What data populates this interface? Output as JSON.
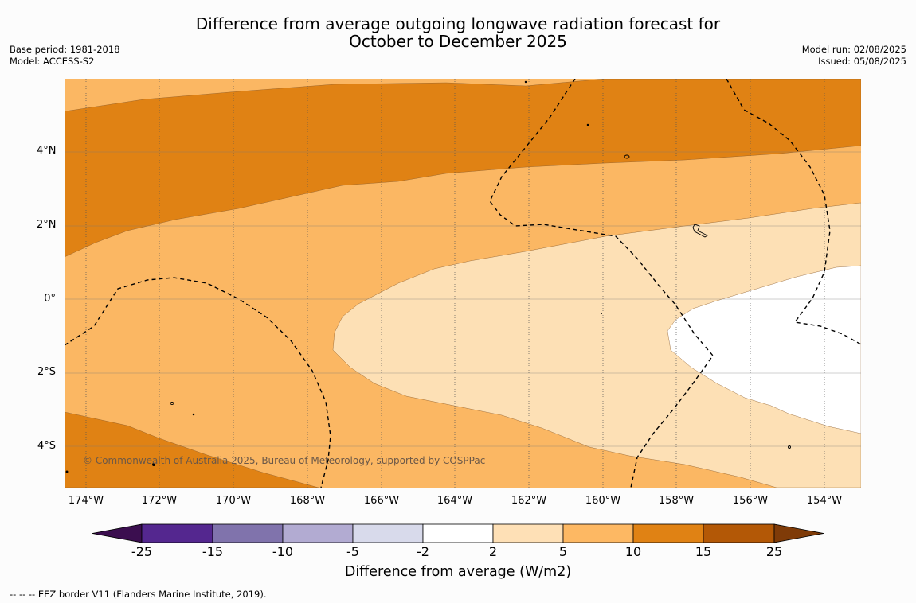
{
  "title": {
    "line1": "Difference from average outgoing longwave radiation forecast for",
    "line2": "October to December 2025"
  },
  "meta_left": {
    "base_period": "Base period: 1981-2018",
    "model": "Model: ACCESS-S2"
  },
  "meta_right": {
    "model_run": "Model run: 02/08/2025",
    "issued": "Issued: 05/08/2025"
  },
  "lat_labels": [
    "4°N",
    "2°N",
    "0°",
    "2°S",
    "4°S"
  ],
  "lon_labels": [
    "174°W",
    "172°W",
    "170°W",
    "168°W",
    "166°W",
    "164°W",
    "162°W",
    "160°W",
    "158°W",
    "156°W",
    "154°W"
  ],
  "copyright": "© Commonwealth of Australia 2025, Bureau of Meteorology, supported by COSPPac",
  "colorbar": {
    "ticks": [
      "-25",
      "-15",
      "-10",
      "-5",
      "-2",
      "2",
      "5",
      "10",
      "15",
      "25"
    ],
    "colors": [
      "#3b0e4f",
      "#54278f",
      "#8073ac",
      "#b2abd2",
      "#d8daeb",
      "#ffffff",
      "#fee0b6",
      "#fdb863",
      "#e08214",
      "#b35806",
      "#7f3b08"
    ],
    "label": "Difference from average (W/m2)"
  },
  "footnote": "--  --  -- EEZ border V11 (Flanders Marine Institute, 2019)."
}
